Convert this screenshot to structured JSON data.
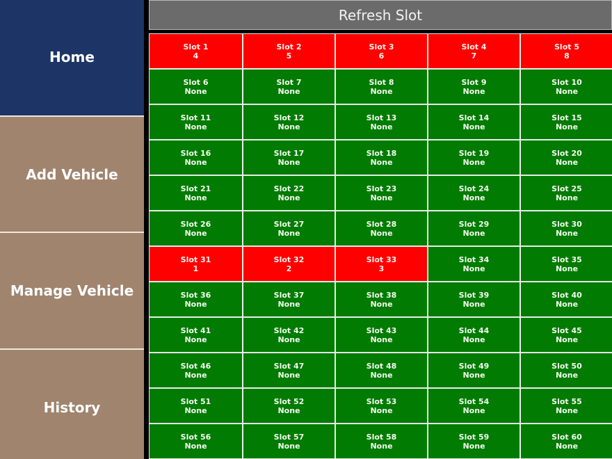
{
  "sidebar": {
    "items": [
      {
        "label": "Home",
        "active": true
      },
      {
        "label": "Add Vehicle",
        "active": false
      },
      {
        "label": "Manage Vehicle",
        "active": false
      },
      {
        "label": "History",
        "active": false
      }
    ]
  },
  "toolbar": {
    "refresh_label": "Refresh Slot"
  },
  "colors": {
    "nav_active": "#1c3566",
    "nav_inactive": "#a0846e",
    "slot_free": "#027b02",
    "slot_occupied": "#ff0000",
    "refresh_bg": "#6b6b6b"
  },
  "slots": [
    {
      "name": "Slot 1",
      "value": "4",
      "status": "occupied"
    },
    {
      "name": "Slot 2",
      "value": "5",
      "status": "occupied"
    },
    {
      "name": "Slot 3",
      "value": "6",
      "status": "occupied"
    },
    {
      "name": "Slot 4",
      "value": "7",
      "status": "occupied"
    },
    {
      "name": "Slot 5",
      "value": "8",
      "status": "occupied"
    },
    {
      "name": "Slot 6",
      "value": "None",
      "status": "free"
    },
    {
      "name": "Slot 7",
      "value": "None",
      "status": "free"
    },
    {
      "name": "Slot 8",
      "value": "None",
      "status": "free"
    },
    {
      "name": "Slot 9",
      "value": "None",
      "status": "free"
    },
    {
      "name": "Slot 10",
      "value": "None",
      "status": "free"
    },
    {
      "name": "Slot 11",
      "value": "None",
      "status": "free"
    },
    {
      "name": "Slot 12",
      "value": "None",
      "status": "free"
    },
    {
      "name": "Slot 13",
      "value": "None",
      "status": "free"
    },
    {
      "name": "Slot 14",
      "value": "None",
      "status": "free"
    },
    {
      "name": "Slot 15",
      "value": "None",
      "status": "free"
    },
    {
      "name": "Slot 16",
      "value": "None",
      "status": "free"
    },
    {
      "name": "Slot 17",
      "value": "None",
      "status": "free"
    },
    {
      "name": "Slot 18",
      "value": "None",
      "status": "free"
    },
    {
      "name": "Slot 19",
      "value": "None",
      "status": "free"
    },
    {
      "name": "Slot 20",
      "value": "None",
      "status": "free"
    },
    {
      "name": "Slot 21",
      "value": "None",
      "status": "free"
    },
    {
      "name": "Slot 22",
      "value": "None",
      "status": "free"
    },
    {
      "name": "Slot 23",
      "value": "None",
      "status": "free"
    },
    {
      "name": "Slot 24",
      "value": "None",
      "status": "free"
    },
    {
      "name": "Slot 25",
      "value": "None",
      "status": "free"
    },
    {
      "name": "Slot 26",
      "value": "None",
      "status": "free"
    },
    {
      "name": "Slot 27",
      "value": "None",
      "status": "free"
    },
    {
      "name": "Slot 28",
      "value": "None",
      "status": "free"
    },
    {
      "name": "Slot 29",
      "value": "None",
      "status": "free"
    },
    {
      "name": "Slot 30",
      "value": "None",
      "status": "free"
    },
    {
      "name": "Slot 31",
      "value": "1",
      "status": "occupied"
    },
    {
      "name": "Slot 32",
      "value": "2",
      "status": "occupied"
    },
    {
      "name": "Slot 33",
      "value": "3",
      "status": "occupied"
    },
    {
      "name": "Slot 34",
      "value": "None",
      "status": "free"
    },
    {
      "name": "Slot 35",
      "value": "None",
      "status": "free"
    },
    {
      "name": "Slot 36",
      "value": "None",
      "status": "free"
    },
    {
      "name": "Slot 37",
      "value": "None",
      "status": "free"
    },
    {
      "name": "Slot 38",
      "value": "None",
      "status": "free"
    },
    {
      "name": "Slot 39",
      "value": "None",
      "status": "free"
    },
    {
      "name": "Slot 40",
      "value": "None",
      "status": "free"
    },
    {
      "name": "Slot 41",
      "value": "None",
      "status": "free"
    },
    {
      "name": "Slot 42",
      "value": "None",
      "status": "free"
    },
    {
      "name": "Slot 43",
      "value": "None",
      "status": "free"
    },
    {
      "name": "Slot 44",
      "value": "None",
      "status": "free"
    },
    {
      "name": "Slot 45",
      "value": "None",
      "status": "free"
    },
    {
      "name": "Slot 46",
      "value": "None",
      "status": "free"
    },
    {
      "name": "Slot 47",
      "value": "None",
      "status": "free"
    },
    {
      "name": "Slot 48",
      "value": "None",
      "status": "free"
    },
    {
      "name": "Slot 49",
      "value": "None",
      "status": "free"
    },
    {
      "name": "Slot 50",
      "value": "None",
      "status": "free"
    },
    {
      "name": "Slot 51",
      "value": "None",
      "status": "free"
    },
    {
      "name": "Slot 52",
      "value": "None",
      "status": "free"
    },
    {
      "name": "Slot 53",
      "value": "None",
      "status": "free"
    },
    {
      "name": "Slot 54",
      "value": "None",
      "status": "free"
    },
    {
      "name": "Slot 55",
      "value": "None",
      "status": "free"
    },
    {
      "name": "Slot 56",
      "value": "None",
      "status": "free"
    },
    {
      "name": "Slot 57",
      "value": "None",
      "status": "free"
    },
    {
      "name": "Slot 58",
      "value": "None",
      "status": "free"
    },
    {
      "name": "Slot 59",
      "value": "None",
      "status": "free"
    },
    {
      "name": "Slot 60",
      "value": "None",
      "status": "free"
    }
  ]
}
